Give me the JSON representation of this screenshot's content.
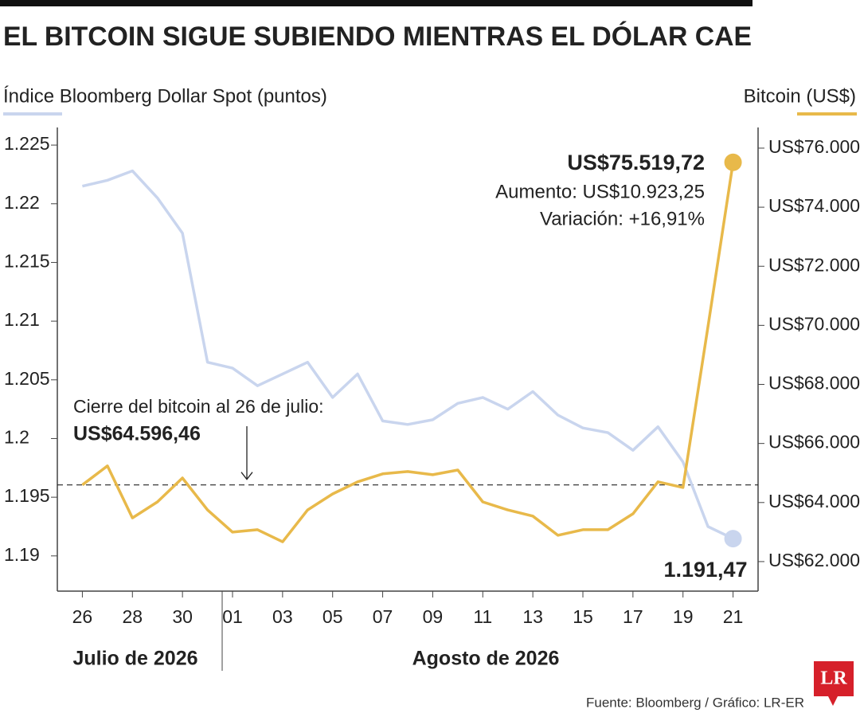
{
  "chart_data": {
    "type": "line",
    "title": "EL BITCOIN SIGUE SUBIENDO MIENTRAS EL DÓLAR CAE",
    "source": "Fuente: Bloomberg / Gráfico: LR-ER",
    "logo": "LR",
    "x": [
      "2026-07-26",
      "2026-07-27",
      "2026-07-28",
      "2026-07-29",
      "2026-07-30",
      "2026-07-31",
      "2026-08-01",
      "2026-08-02",
      "2026-08-03",
      "2026-08-04",
      "2026-08-05",
      "2026-08-06",
      "2026-08-07",
      "2026-08-08",
      "2026-08-09",
      "2026-08-10",
      "2026-08-11",
      "2026-08-12",
      "2026-08-13",
      "2026-08-14",
      "2026-08-15",
      "2026-08-16",
      "2026-08-17",
      "2026-08-18",
      "2026-08-19",
      "2026-08-20",
      "2026-08-21"
    ],
    "xlim": [
      "2026-07-25",
      "2026-08-22"
    ],
    "xticks": [
      {
        "value": "2026-07-26",
        "label": "26"
      },
      {
        "value": "2026-07-28",
        "label": "28"
      },
      {
        "value": "2026-07-30",
        "label": "30"
      },
      {
        "value": "2026-08-01",
        "label": "01"
      },
      {
        "value": "2026-08-03",
        "label": "03"
      },
      {
        "value": "2026-08-05",
        "label": "05"
      },
      {
        "value": "2026-08-07",
        "label": "07"
      },
      {
        "value": "2026-08-09",
        "label": "09"
      },
      {
        "value": "2026-08-11",
        "label": "11"
      },
      {
        "value": "2026-08-13",
        "label": "13"
      },
      {
        "value": "2026-08-15",
        "label": "15"
      },
      {
        "value": "2026-08-17",
        "label": "17"
      },
      {
        "value": "2026-08-19",
        "label": "19"
      },
      {
        "value": "2026-08-21",
        "label": "21"
      }
    ],
    "x_groups": [
      "Julio de 2026",
      "Agosto de 2026"
    ],
    "ylim": [
      1.187,
      1.2265
    ],
    "yticks": [
      1.19,
      1.195,
      1.2,
      1.205,
      1.21,
      1.215,
      1.22,
      1.225
    ],
    "y2lim": [
      61000,
      76700
    ],
    "y2ticks": [
      {
        "value": 62000,
        "label": "US$62.000"
      },
      {
        "value": 64000,
        "label": "US$64.000"
      },
      {
        "value": 66000,
        "label": "US$66.000"
      },
      {
        "value": 68000,
        "label": "US$68.000"
      },
      {
        "value": 70000,
        "label": "US$70.000"
      },
      {
        "value": 72000,
        "label": "US$72.000"
      },
      {
        "value": 74000,
        "label": "US$74.000"
      },
      {
        "value": 76000,
        "label": "US$76.000"
      }
    ],
    "series": [
      {
        "name": "Índice Bloomberg Dollar Spot (puntos)",
        "color": "#c9d5ee",
        "values": [
          1.2215,
          1.222,
          1.2228,
          1.2205,
          1.2175,
          1.2065,
          1.206,
          1.2045,
          1.2055,
          1.2065,
          1.2035,
          1.2055,
          1.2015,
          1.2012,
          1.2016,
          1.203,
          1.2035,
          1.2025,
          1.204,
          1.202,
          1.2009,
          1.2005,
          1.199,
          1.201,
          1.198,
          1.1925,
          1.19147
        ],
        "value_labels": [
          null,
          null,
          null,
          null,
          null,
          null,
          null,
          null,
          null,
          null,
          null,
          null,
          null,
          null,
          null,
          null,
          null,
          null,
          null,
          null,
          null,
          null,
          null,
          null,
          null,
          null,
          "1.191,47"
        ]
      },
      {
        "name": "Bitcoin (US$)",
        "color": "#e8b94a",
        "axis": "y2",
        "values": [
          64596.46,
          65240,
          63480,
          64020,
          64830,
          63750,
          63000,
          63080,
          62670,
          63750,
          64290,
          64700,
          64970,
          65050,
          64940,
          65100,
          64020,
          63750,
          63540,
          62890,
          63080,
          63080,
          63620,
          64700,
          64510,
          69960,
          75519.72
        ],
        "value_labels": [
          null,
          null,
          null,
          null,
          null,
          null,
          null,
          null,
          null,
          null,
          null,
          null,
          null,
          null,
          null,
          null,
          null,
          null,
          null,
          null,
          null,
          null,
          null,
          null,
          null,
          null,
          "US$75.519,72"
        ]
      }
    ],
    "annotations": [
      "Aumento: US$10.923,25",
      "Variación: +16,91%"
    ],
    "reference": {
      "text": "Cierre del bitcoin al 26 de julio:",
      "value": 64596.46,
      "label": "US$64.596,46",
      "axis": "y2"
    }
  }
}
